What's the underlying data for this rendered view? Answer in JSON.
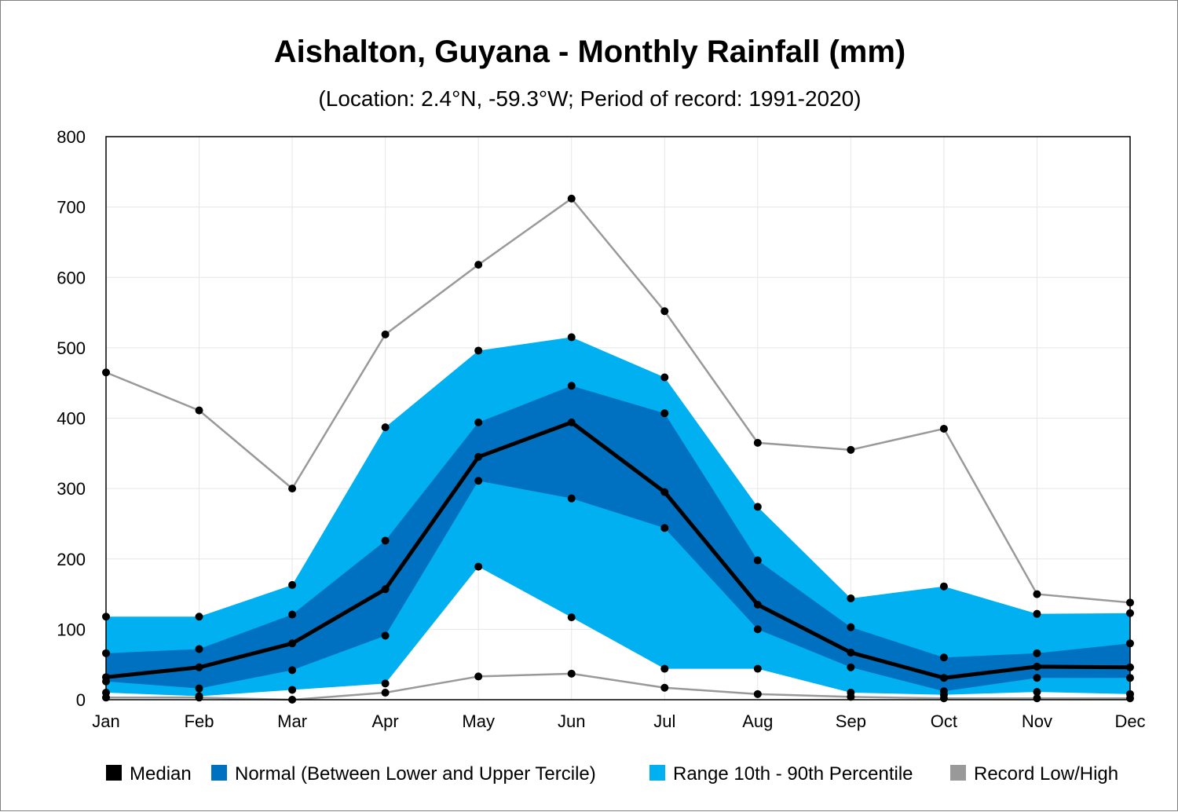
{
  "chart_data": {
    "type": "area",
    "title": "Aishalton, Guyana - Monthly Rainfall (mm)",
    "subtitle": "(Location: 2.4°N, -59.3°W; Period of record: 1991-2020)",
    "xlabel": "",
    "ylabel": "",
    "categories": [
      "Jan",
      "Feb",
      "Mar",
      "Apr",
      "May",
      "Jun",
      "Jul",
      "Aug",
      "Sep",
      "Oct",
      "Nov",
      "Dec"
    ],
    "ylim": [
      0,
      800
    ],
    "yticks": [
      0,
      100,
      200,
      300,
      400,
      500,
      600,
      700,
      800
    ],
    "grid": true,
    "legend_position": "bottom",
    "colors": {
      "median": "#000000",
      "normal": "#0070c0",
      "range": "#00b0f0",
      "record": "#999999"
    },
    "series": [
      {
        "key": "record_high",
        "values": [
          465,
          411,
          300,
          519,
          618,
          712,
          552,
          365,
          355,
          385,
          150,
          138
        ]
      },
      {
        "key": "p90",
        "values": [
          118,
          118,
          163,
          387,
          496,
          515,
          458,
          274,
          144,
          161,
          122,
          123
        ]
      },
      {
        "key": "upper_tercile",
        "values": [
          66,
          72,
          121,
          226,
          394,
          446,
          407,
          198,
          103,
          60,
          66,
          80
        ]
      },
      {
        "key": "median",
        "values": [
          32,
          46,
          80,
          157,
          345,
          394,
          295,
          135,
          67,
          31,
          47,
          46
        ]
      },
      {
        "key": "lower_tercile",
        "values": [
          26,
          16,
          42,
          91,
          311,
          286,
          244,
          100,
          46,
          12,
          31,
          31
        ]
      },
      {
        "key": "p10",
        "values": [
          10,
          5,
          14,
          23,
          189,
          117,
          44,
          44,
          10,
          7,
          11,
          8
        ]
      },
      {
        "key": "record_low",
        "values": [
          3,
          3,
          0,
          10,
          33,
          37,
          17,
          8,
          4,
          2,
          2,
          2
        ]
      }
    ],
    "legend": [
      {
        "key": "median",
        "label": "Median"
      },
      {
        "key": "normal",
        "label": "Normal (Between Lower and Upper Tercile)"
      },
      {
        "key": "range",
        "label": "Range 10th - 90th Percentile"
      },
      {
        "key": "record",
        "label": "Record Low/High"
      }
    ]
  }
}
